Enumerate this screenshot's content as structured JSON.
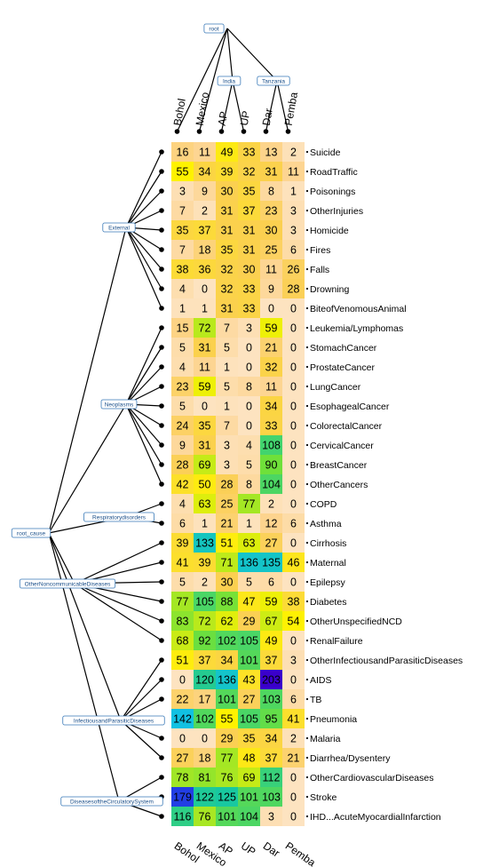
{
  "chart_data": {
    "type": "heatmap",
    "columns": [
      "Bohol",
      "Mexico",
      "AP",
      "UP",
      "Dar",
      "Pemba"
    ],
    "column_tree": {
      "root": "root",
      "groups": [
        {
          "name": "Bohol",
          "children": []
        },
        {
          "name": "Mexico",
          "children": []
        },
        {
          "name": "India",
          "children": [
            "AP",
            "UP"
          ]
        },
        {
          "name": "Tanzania",
          "children": [
            "Dar",
            "Pemba"
          ]
        }
      ]
    },
    "row_tree": {
      "root": "root_cause",
      "groups": [
        {
          "name": "External",
          "rows": [
            "Suicide",
            "RoadTraffic",
            "Poisonings",
            "OtherInjuries",
            "Homicide",
            "Fires",
            "Falls",
            "Drowning",
            "BiteofVenomousAnimal"
          ]
        },
        {
          "name": "Neoplasms",
          "rows": [
            "Leukemia/Lymphomas",
            "StomachCancer",
            "ProstateCancer",
            "LungCancer",
            "EsophagealCancer",
            "ColorectalCancer",
            "CervicalCancer",
            "BreastCancer",
            "OtherCancers"
          ]
        },
        {
          "name": "Respiratorydisorders",
          "rows": [
            "COPD",
            "Asthma"
          ]
        },
        {
          "name": "OtherNoncommunicableDiseases",
          "rows": [
            "Cirrhosis",
            "Maternal",
            "Epilepsy",
            "Diabetes",
            "OtherUnspecifiedNCD",
            "RenalFailure"
          ]
        },
        {
          "name": "InfectiousandParasiticDiseases",
          "rows": [
            "OtherInfectiousandParasiticDiseases",
            "AIDS",
            "TB",
            "Pneumonia",
            "Malaria",
            "Diarrhea/Dysentery"
          ]
        },
        {
          "name": "DiseasesoftheCirculatorySystem",
          "rows": [
            "OtherCardiovascularDiseases",
            "Stroke",
            "IHD...AcuteMyocardialInfarction"
          ]
        }
      ]
    },
    "rows": [
      {
        "label": "Suicide",
        "values": [
          16,
          11,
          49,
          33,
          13,
          2
        ]
      },
      {
        "label": "RoadTraffic",
        "values": [
          55,
          34,
          39,
          32,
          31,
          11
        ]
      },
      {
        "label": "Poisonings",
        "values": [
          3,
          9,
          30,
          35,
          8,
          1
        ]
      },
      {
        "label": "OtherInjuries",
        "values": [
          7,
          2,
          31,
          37,
          23,
          3
        ]
      },
      {
        "label": "Homicide",
        "values": [
          35,
          37,
          31,
          31,
          30,
          3
        ]
      },
      {
        "label": "Fires",
        "values": [
          7,
          18,
          35,
          31,
          25,
          6
        ]
      },
      {
        "label": "Falls",
        "values": [
          38,
          36,
          32,
          30,
          11,
          26
        ]
      },
      {
        "label": "Drowning",
        "values": [
          4,
          0,
          32,
          33,
          9,
          28
        ]
      },
      {
        "label": "BiteofVenomousAnimal",
        "values": [
          1,
          1,
          31,
          33,
          0,
          0
        ]
      },
      {
        "label": "Leukemia/Lymphomas",
        "values": [
          15,
          72,
          7,
          3,
          59,
          0
        ]
      },
      {
        "label": "StomachCancer",
        "values": [
          5,
          31,
          5,
          0,
          21,
          0
        ]
      },
      {
        "label": "ProstateCancer",
        "values": [
          4,
          11,
          1,
          0,
          32,
          0
        ]
      },
      {
        "label": "LungCancer",
        "values": [
          23,
          59,
          5,
          8,
          11,
          0
        ]
      },
      {
        "label": "EsophagealCancer",
        "values": [
          5,
          0,
          1,
          0,
          34,
          0
        ]
      },
      {
        "label": "ColorectalCancer",
        "values": [
          24,
          35,
          7,
          0,
          33,
          0
        ]
      },
      {
        "label": "CervicalCancer",
        "values": [
          9,
          31,
          3,
          4,
          108,
          0
        ]
      },
      {
        "label": "BreastCancer",
        "values": [
          28,
          69,
          3,
          5,
          90,
          0
        ]
      },
      {
        "label": "OtherCancers",
        "values": [
          42,
          50,
          28,
          8,
          104,
          0
        ]
      },
      {
        "label": "COPD",
        "values": [
          4,
          63,
          25,
          77,
          2,
          0
        ]
      },
      {
        "label": "Asthma",
        "values": [
          6,
          1,
          21,
          1,
          12,
          6
        ]
      },
      {
        "label": "Cirrhosis",
        "values": [
          39,
          133,
          51,
          63,
          27,
          0
        ]
      },
      {
        "label": "Maternal",
        "values": [
          41,
          39,
          71,
          136,
          135,
          46
        ]
      },
      {
        "label": "Epilepsy",
        "values": [
          5,
          2,
          30,
          5,
          6,
          0
        ]
      },
      {
        "label": "Diabetes",
        "values": [
          77,
          105,
          88,
          47,
          59,
          38
        ]
      },
      {
        "label": "OtherUnspecifiedNCD",
        "values": [
          83,
          72,
          62,
          29,
          67,
          54
        ]
      },
      {
        "label": "RenalFailure",
        "values": [
          68,
          92,
          102,
          105,
          49,
          0
        ]
      },
      {
        "label": "OtherInfectiousandParasiticDiseases",
        "values": [
          51,
          37,
          34,
          101,
          37,
          3
        ]
      },
      {
        "label": "AIDS",
        "values": [
          0,
          120,
          136,
          43,
          203,
          0
        ]
      },
      {
        "label": "TB",
        "values": [
          22,
          17,
          101,
          27,
          103,
          6
        ]
      },
      {
        "label": "Pneumonia",
        "values": [
          142,
          102,
          55,
          105,
          95,
          41
        ]
      },
      {
        "label": "Malaria",
        "values": [
          0,
          0,
          29,
          35,
          34,
          2
        ]
      },
      {
        "label": "Diarrhea/Dysentery",
        "values": [
          27,
          18,
          77,
          48,
          37,
          21
        ]
      },
      {
        "label": "OtherCardiovascularDiseases",
        "values": [
          78,
          81,
          76,
          69,
          112,
          0
        ]
      },
      {
        "label": "Stroke",
        "values": [
          179,
          122,
          125,
          101,
          103,
          0
        ]
      },
      {
        "label": "IHD...AcuteMyocardialInfarction",
        "values": [
          116,
          76,
          101,
          104,
          3,
          0
        ]
      }
    ],
    "color_scale": {
      "min": 0,
      "max": 203,
      "stops": [
        {
          "value": 0,
          "color": "#fde3c0"
        },
        {
          "value": 12,
          "color": "#fdd48e"
        },
        {
          "value": 30,
          "color": "#fbd050"
        },
        {
          "value": 55,
          "color": "#fef200"
        },
        {
          "value": 90,
          "color": "#6fe03a"
        },
        {
          "value": 125,
          "color": "#18c8a0"
        },
        {
          "value": 145,
          "color": "#10c0ee"
        },
        {
          "value": 175,
          "color": "#1e48e8"
        },
        {
          "value": 203,
          "color": "#3a00cc"
        }
      ]
    }
  }
}
